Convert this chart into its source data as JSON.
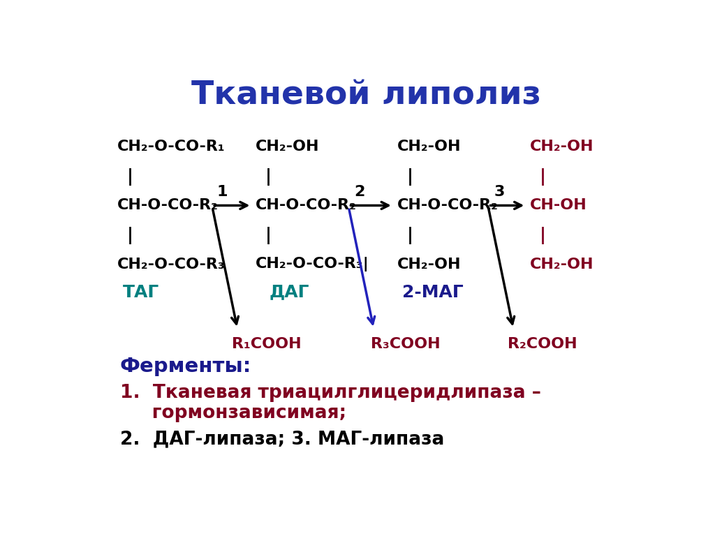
{
  "title": "Тканевой липолиз",
  "title_color": "#2233AA",
  "title_fontsize": 34,
  "background_color": "#FFFFFF",
  "black": "#000000",
  "dark_red": "#800020",
  "teal": "#008080",
  "blue_arrow": "#2222BB",
  "dark_blue": "#1a1a8c",
  "fs_main": 16,
  "fs_label": 18,
  "fs_enzyme_title": 21,
  "fs_enzyme_text": 19,
  "col1_line1": "CH₂-O-CO-R₁",
  "col1_line3": "CH-O-CO-R₂",
  "col1_line5": "CH₂-O-CO-R₃",
  "col1_label": "ТАГ",
  "col2_line1": "CH₂-OH",
  "col2_line3": "CH-O-CO-R₂",
  "col2_line5": "CH₂-O-CO-R₃|",
  "col2_label": "ДАГ",
  "col3_line1": "CH₂-OH",
  "col3_line3": "CH-O-CO-R₂",
  "col3_line5": "CH₂-OH",
  "col3_label": "2-МАГ",
  "col4_line1": "CH₂-OH",
  "col4_line3": "CH-OH",
  "col4_line5": "CH₂-OH",
  "r1cooh": "R₁COOH",
  "r3cooh": "R₃COOH",
  "r2cooh": "R₂COOH",
  "fermenty_label": "Ферменты:",
  "enzyme1_text": "1.  Тканевая триацилглицеридлипаза –",
  "enzyme1_text2": "     гормонзависимая;",
  "enzyme2_text": "2.  ДАГ-липаза; 3. МАГ-липаза"
}
